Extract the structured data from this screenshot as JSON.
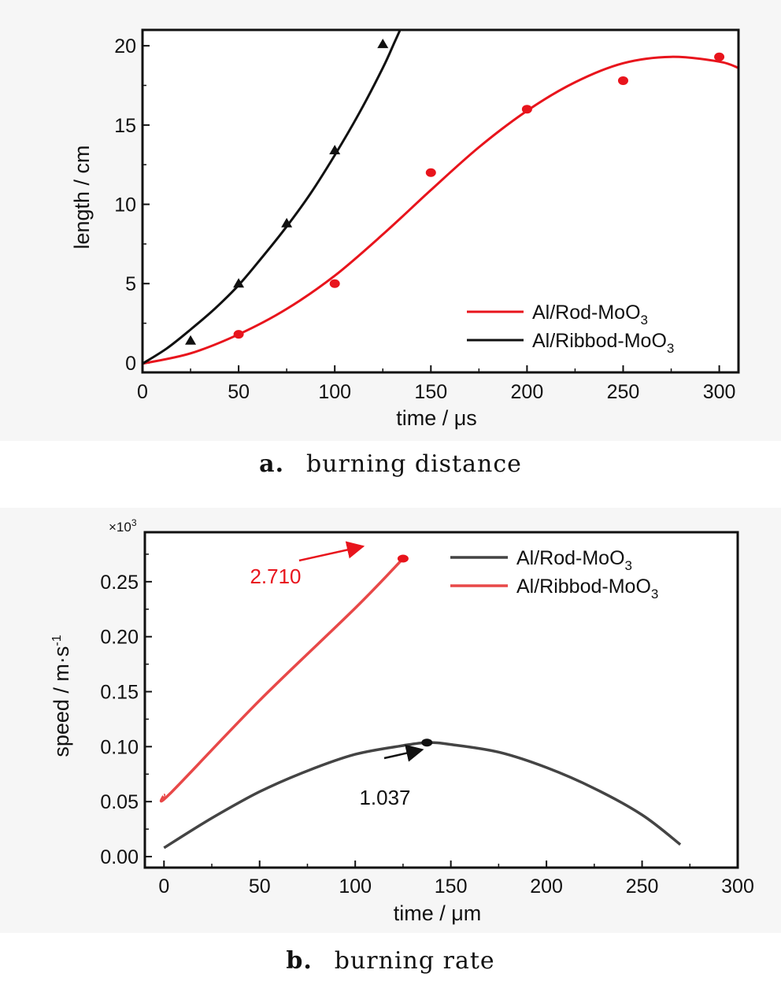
{
  "chart_data": [
    {
      "type": "scatter",
      "xlabel": "time / μs",
      "ylabel": "length / cm",
      "xlim": [
        0,
        310
      ],
      "ylim": [
        -0.6,
        21
      ],
      "xticks": [
        0,
        50,
        100,
        150,
        200,
        250,
        300
      ],
      "yticks": [
        0,
        5,
        10,
        15,
        20
      ],
      "legend_position": "bottom-right",
      "series": [
        {
          "name": "Al/Rod-MoO3",
          "name_main": "Al/Rod-MoO",
          "name_sub": "3",
          "color": "#e8141c",
          "marker": "circle",
          "points": [
            [
              0,
              0
            ],
            [
              50,
              1.8
            ],
            [
              100,
              5.0
            ],
            [
              150,
              12.0
            ],
            [
              200,
              16.0
            ],
            [
              250,
              17.8
            ],
            [
              300,
              19.3
            ]
          ],
          "fit": [
            [
              0,
              -0.05
            ],
            [
              25,
              0.6
            ],
            [
              50,
              1.8
            ],
            [
              75,
              3.4
            ],
            [
              100,
              5.5
            ],
            [
              125,
              8.1
            ],
            [
              150,
              10.9
            ],
            [
              175,
              13.6
            ],
            [
              200,
              15.9
            ],
            [
              225,
              17.7
            ],
            [
              250,
              18.9
            ],
            [
              275,
              19.3
            ],
            [
              300,
              19.0
            ],
            [
              310,
              18.6
            ]
          ]
        },
        {
          "name": "Al/Ribbod-MoO3",
          "name_main": "Al/Ribbod-MoO",
          "name_sub": "3",
          "color": "#111111",
          "marker": "triangle",
          "points": [
            [
              0,
              0
            ],
            [
              25,
              1.4
            ],
            [
              50,
              5.0
            ],
            [
              75,
              8.8
            ],
            [
              100,
              13.4
            ],
            [
              125,
              20.1
            ]
          ],
          "fit": [
            [
              0,
              -0.05
            ],
            [
              12.5,
              0.9
            ],
            [
              25,
              2.1
            ],
            [
              37.5,
              3.4
            ],
            [
              50,
              4.9
            ],
            [
              62.5,
              6.7
            ],
            [
              75,
              8.6
            ],
            [
              87.5,
              10.7
            ],
            [
              100,
              13.1
            ],
            [
              112.5,
              15.7
            ],
            [
              125,
              18.6
            ],
            [
              131,
              20.2
            ],
            [
              134,
              21.0
            ]
          ]
        }
      ]
    },
    {
      "type": "line",
      "xlabel": "time / μm",
      "ylabel": "speed / m·s",
      "ylabel_sup": "-1",
      "y_multiplier": "×10",
      "y_multiplier_sup": "3",
      "xlim": [
        -10,
        300
      ],
      "ylim": [
        -0.01,
        0.295
      ],
      "xticks": [
        0,
        50,
        100,
        150,
        200,
        250,
        300
      ],
      "yticks": [
        "0.00",
        "0.05",
        "0.10",
        "0.15",
        "0.20",
        "0.25"
      ],
      "legend_position": "top-right",
      "series": [
        {
          "name": "Al/Rod-MoO3",
          "name_main": "Al/Rod-MoO",
          "name_sub": "3",
          "color": "#444444",
          "values": [
            [
              0,
              0.008
            ],
            [
              25,
              0.035
            ],
            [
              50,
              0.059
            ],
            [
              75,
              0.078
            ],
            [
              100,
              0.093
            ],
            [
              125,
              0.101
            ],
            [
              137.5,
              0.1037
            ],
            [
              150,
              0.102
            ],
            [
              175,
              0.095
            ],
            [
              200,
              0.081
            ],
            [
              225,
              0.062
            ],
            [
              250,
              0.038
            ],
            [
              270,
              0.011
            ]
          ],
          "peak": {
            "x": 137.5,
            "y": 0.1037,
            "label": "1.037"
          }
        },
        {
          "name": "Al/Ribbod-MoO3",
          "name_main": "Al/Ribbod-MoO",
          "name_sub": "3",
          "color": "#e84848",
          "values": [
            [
              0,
              0.056
            ],
            [
              3,
              0.057
            ],
            [
              50,
              0.142
            ],
            [
              100,
              0.226
            ],
            [
              125,
              0.271
            ]
          ],
          "peak": {
            "x": 125,
            "y": 0.271,
            "label": "2.710"
          }
        }
      ]
    }
  ],
  "captions": {
    "a": {
      "letter": "a.",
      "text": "burning distance"
    },
    "b": {
      "letter": "b.",
      "text": "burning rate"
    }
  }
}
